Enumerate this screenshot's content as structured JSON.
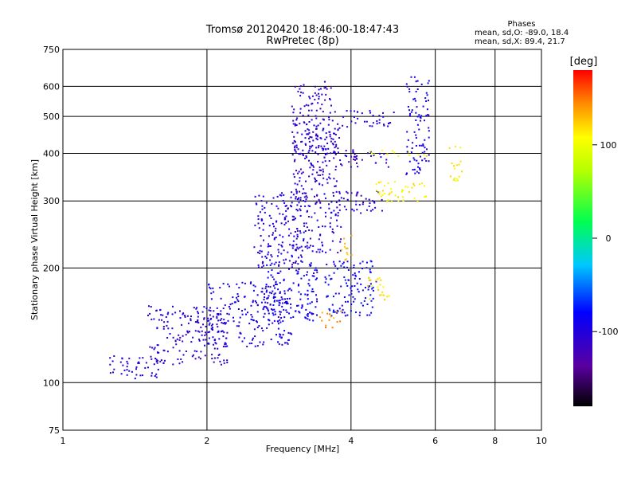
{
  "chart_data": {
    "type": "scatter",
    "title": "Tromsø 20120420 18:46:00-18:47:43",
    "subtitle": "RwPretec (8p)",
    "xlabel": "Frequency [MHz]",
    "ylabel": "Stationary phase Virtual Height [km]",
    "x_scale": "log",
    "y_scale": "log",
    "xlim": [
      1,
      10
    ],
    "ylim": [
      75,
      750
    ],
    "x_ticks": [
      1,
      2,
      4,
      6,
      8,
      10
    ],
    "x_tick_labels": [
      "1",
      "2",
      "4",
      "6",
      "8",
      "10"
    ],
    "y_ticks": [
      75,
      100,
      200,
      300,
      400,
      500,
      600,
      750
    ],
    "y_tick_labels": [
      "75",
      "100",
      "200",
      "300",
      "400",
      "500",
      "600",
      "750"
    ],
    "grid": true,
    "phases_info": {
      "heading": "Phases",
      "line0": "mean, sd,O: -89.0, 18.4",
      "lineX": "mean, sd,X:  89.4, 21.7"
    },
    "colorbar": {
      "label": "[deg]",
      "range": [
        -180,
        180
      ],
      "ticks": [
        100,
        0,
        -100
      ],
      "tick_labels": [
        "100",
        "0",
        "-100"
      ]
    },
    "clusters": [
      {
        "x": [
          1.25,
          1.6
        ],
        "y": [
          103,
          118
        ],
        "phase": -100
      },
      {
        "x": [
          1.5,
          2.2
        ],
        "y": [
          112,
          160
        ],
        "phase": -105
      },
      {
        "x": [
          2.0,
          3.0
        ],
        "y": [
          125,
          185
        ],
        "phase": -95
      },
      {
        "x": [
          2.6,
          3.4
        ],
        "y": [
          145,
          210
        ],
        "phase": -90
      },
      {
        "x": [
          2.5,
          3.2
        ],
        "y": [
          200,
          320
        ],
        "phase": -100
      },
      {
        "x": [
          3.0,
          3.8
        ],
        "y": [
          220,
          480
        ],
        "phase": -105
      },
      {
        "x": [
          3.0,
          3.7
        ],
        "y": [
          400,
          620
        ],
        "phase": -110
      },
      {
        "x": [
          3.5,
          4.5
        ],
        "y": [
          150,
          210
        ],
        "phase": -85
      },
      {
        "x": [
          3.7,
          4.7
        ],
        "y": [
          280,
          320
        ],
        "phase": -105
      },
      {
        "x": [
          3.7,
          4.8
        ],
        "y": [
          370,
          410
        ],
        "phase": -110
      },
      {
        "x": [
          3.8,
          4.9
        ],
        "y": [
          470,
          520
        ],
        "phase": -105
      },
      {
        "x": [
          4.3,
          5.8
        ],
        "y": [
          395,
          410
        ],
        "phase": 105
      },
      {
        "x": [
          4.5,
          5.8
        ],
        "y": [
          300,
          340
        ],
        "phase": 110
      },
      {
        "x": [
          4.3,
          4.8
        ],
        "y": [
          165,
          190
        ],
        "phase": 115
      },
      {
        "x": [
          3.4,
          3.8
        ],
        "y": [
          140,
          155
        ],
        "phase": 140
      },
      {
        "x": [
          3.8,
          4.0
        ],
        "y": [
          210,
          245
        ],
        "phase": 130
      },
      {
        "x": [
          5.2,
          5.8
        ],
        "y": [
          350,
          640
        ],
        "phase": -95
      },
      {
        "x": [
          6.4,
          6.8
        ],
        "y": [
          340,
          420
        ],
        "phase": 110
      }
    ]
  }
}
